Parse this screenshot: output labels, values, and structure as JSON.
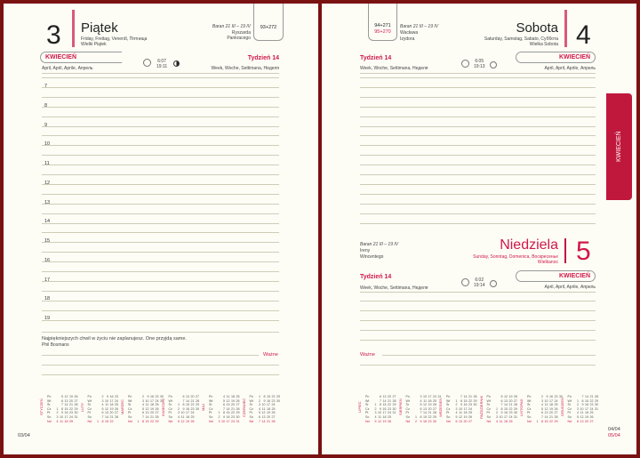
{
  "left": {
    "day_number": "3",
    "day_name": "Piątek",
    "day_translations": "Friday, Freitag, Venerdì, Пятница",
    "holiday": "Wielki Piątek",
    "zodiac": "Baran 21 III – 19 IV",
    "namedays": [
      "Ryszarda",
      "Pankracego"
    ],
    "day_count": "93+272",
    "month": "KWIECIEŃ",
    "month_translations": "April, April, Aprile, Апрель",
    "sunrise": "6:07",
    "sunset": "19:11",
    "moon": "full-moon-half-icon",
    "week": "Tydzień 14",
    "week_translations": "Week, Woche, Settimana, Неделя",
    "hours": [
      "7",
      "8",
      "9",
      "10",
      "11",
      "12",
      "13",
      "14",
      "15",
      "16",
      "17",
      "18",
      "19"
    ],
    "quote": "Najpiękniejszych chwil w życiu nie zaplanujesz. One przyjdą same.",
    "quote_author": "Phil Bosmans",
    "important": "Ważne",
    "page_number": "03/04"
  },
  "right": {
    "saturday": {
      "day_number": "4",
      "day_name": "Sobota",
      "day_translations": "Saturday, Samstag, Sabato, Суббота",
      "holiday": "Wielka Sobota",
      "zodiac": "Baran 21 III – 19 IV",
      "namedays": [
        "Wacława",
        "Izydora"
      ],
      "day_count": "94+271",
      "day_count_next": "95+270",
      "week": "Tydzień 14",
      "week_translations": "Week, Woche, Settimana, Неделя",
      "sunrise": "6:05",
      "sunset": "19:13",
      "month": "KWIECIEŃ",
      "month_translations": "April, April, Aprile, Апрель"
    },
    "sunday": {
      "day_number": "5",
      "day_name": "Niedziela",
      "day_translations": "Sunday, Sonntag, Domenica, Воскресенье",
      "holiday": "Wielkanoc",
      "zodiac": "Baran 21 III – 19 IV",
      "namedays": [
        "Ireny",
        "Wincentego"
      ],
      "week": "Tydzień 14",
      "week_translations": "Week, Woche, Settimana, Неделя",
      "sunrise": "6:02",
      "sunset": "19:14",
      "month": "KWIECIEŃ",
      "month_translations": "April, April, Aprile, Апрель"
    },
    "important": "Ważne",
    "page_numbers": [
      "04/04",
      "05/04"
    ]
  },
  "tab": "KWIECIEŃ",
  "calendar": {
    "weekdays": [
      "Pn",
      "Wt",
      "Śr",
      "Cz",
      "Pt",
      "So",
      "Nd"
    ],
    "months": [
      {
        "name": "STYCZEŃ",
        "first_weekday": 3,
        "days": 31
      },
      {
        "name": "LUTY",
        "first_weekday": 6,
        "days": 28
      },
      {
        "name": "MARZEC",
        "first_weekday": 6,
        "days": 31
      },
      {
        "name": "KWIECIEŃ",
        "first_weekday": 2,
        "days": 30
      },
      {
        "name": "MAJ",
        "first_weekday": 4,
        "days": 31
      },
      {
        "name": "CZERWIEC",
        "first_weekday": 0,
        "days": 30
      },
      {
        "name": "LIPIEC",
        "first_weekday": 2,
        "days": 31
      },
      {
        "name": "SIERPIEŃ",
        "first_weekday": 5,
        "days": 31
      },
      {
        "name": "WRZESIEŃ",
        "first_weekday": 1,
        "days": 30
      },
      {
        "name": "PAŹDZIERNIK",
        "first_weekday": 3,
        "days": 31
      },
      {
        "name": "LISTOPAD",
        "first_weekday": 6,
        "days": 30
      },
      {
        "name": "GRUDZIEŃ",
        "first_weekday": 1,
        "days": 31
      }
    ]
  },
  "colors": {
    "accent": "#d0184a",
    "tab": "#c0183c",
    "border": "#7a1212",
    "paper": "#fdfdf6"
  }
}
